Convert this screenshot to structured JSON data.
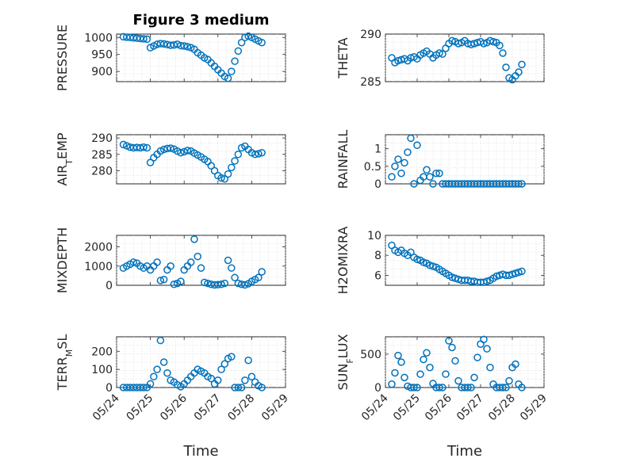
{
  "figure": {
    "title": "Figure 3 medium",
    "xlabel": "Time",
    "marker_color": "#0072BD",
    "x_ticks": [
      "05/24",
      "05/25",
      "05/26",
      "05/27",
      "05/28",
      "05/29"
    ]
  },
  "chart_data": [
    {
      "type": "scatter",
      "ylabel": "PRESSURE",
      "ylim": [
        870,
        1010
      ],
      "yticks": [
        900,
        950,
        1000
      ],
      "xlim": [
        24,
        29
      ],
      "grid": true,
      "series": [
        {
          "x": [
            24.2,
            24.3,
            24.4,
            24.5,
            24.6,
            24.7,
            24.8,
            24.9,
            25.0,
            25.1,
            25.2,
            25.3,
            25.4,
            25.5,
            25.6,
            25.7,
            25.8,
            25.9,
            26.0,
            26.1,
            26.2,
            26.3,
            26.4,
            26.5,
            26.6,
            26.7,
            26.8,
            26.9,
            27.0,
            27.1,
            27.2,
            27.3,
            27.4,
            27.5,
            27.6,
            27.7,
            27.8,
            27.9,
            28.0,
            28.1,
            28.2,
            28.3
          ],
          "y": [
            1002,
            1001,
            1000,
            999,
            998,
            997,
            996,
            995,
            970,
            975,
            980,
            982,
            981,
            979,
            977,
            978,
            980,
            976,
            975,
            973,
            970,
            965,
            955,
            948,
            940,
            935,
            925,
            915,
            905,
            895,
            885,
            880,
            900,
            930,
            960,
            985,
            1000,
            1004,
            1000,
            995,
            990,
            985
          ]
        }
      ]
    },
    {
      "type": "scatter",
      "ylabel": "THETA",
      "ylim": [
        285,
        290
      ],
      "yticks": [
        285,
        290
      ],
      "xlim": [
        24,
        29
      ],
      "grid": true,
      "series": [
        {
          "x": [
            24.2,
            24.3,
            24.4,
            24.5,
            24.6,
            24.7,
            24.8,
            24.9,
            25.0,
            25.1,
            25.2,
            25.3,
            25.4,
            25.5,
            25.6,
            25.7,
            25.8,
            25.9,
            26.0,
            26.1,
            26.2,
            26.3,
            26.4,
            26.5,
            26.6,
            26.7,
            26.8,
            26.9,
            27.0,
            27.1,
            27.2,
            27.3,
            27.4,
            27.5,
            27.6,
            27.7,
            27.8,
            27.9,
            28.0,
            28.1,
            28.2,
            28.3
          ],
          "y": [
            287.5,
            287.0,
            287.2,
            287.3,
            287.4,
            287.2,
            287.5,
            287.6,
            287.4,
            287.8,
            288.0,
            288.2,
            287.9,
            287.5,
            287.8,
            288.0,
            287.9,
            288.5,
            289.0,
            289.3,
            289.2,
            289.0,
            289.1,
            289.3,
            289.0,
            288.9,
            289.0,
            289.1,
            289.2,
            289.0,
            289.1,
            289.3,
            289.2,
            289.1,
            288.8,
            288.0,
            286.5,
            285.4,
            285.2,
            285.6,
            286.0,
            286.8
          ]
        }
      ]
    },
    {
      "type": "scatter",
      "ylabel": "AIR_TEMP",
      "ylim": [
        276,
        291
      ],
      "yticks": [
        280,
        285,
        290
      ],
      "xlim": [
        24,
        29
      ],
      "grid": true,
      "series": [
        {
          "x": [
            24.2,
            24.3,
            24.4,
            24.5,
            24.6,
            24.7,
            24.8,
            24.9,
            25.0,
            25.1,
            25.2,
            25.3,
            25.4,
            25.5,
            25.6,
            25.7,
            25.8,
            25.9,
            26.0,
            26.1,
            26.2,
            26.3,
            26.4,
            26.5,
            26.6,
            26.7,
            26.8,
            26.9,
            27.0,
            27.1,
            27.2,
            27.3,
            27.4,
            27.5,
            27.6,
            27.7,
            27.8,
            27.9,
            28.0,
            28.1,
            28.2,
            28.3
          ],
          "y": [
            288.0,
            287.6,
            287.2,
            287.0,
            287.1,
            287.0,
            287.2,
            287.0,
            282.5,
            284.0,
            285.0,
            286.0,
            286.5,
            286.8,
            286.9,
            286.6,
            286.0,
            285.5,
            285.8,
            286.2,
            286.0,
            285.4,
            284.8,
            284.2,
            283.5,
            282.8,
            281.5,
            280.0,
            278.5,
            277.8,
            277.5,
            279.0,
            281.0,
            283.0,
            285.0,
            287.0,
            287.5,
            286.5,
            285.5,
            285.0,
            285.2,
            285.5
          ]
        }
      ]
    },
    {
      "type": "scatter",
      "ylabel": "RAINFALL",
      "ylim": [
        0,
        1.4
      ],
      "yticks": [
        0,
        0.5,
        1
      ],
      "xlim": [
        24,
        29
      ],
      "grid": true,
      "series": [
        {
          "x": [
            24.2,
            24.3,
            24.4,
            24.5,
            24.6,
            24.7,
            24.8,
            24.9,
            25.0,
            25.1,
            25.2,
            25.3,
            25.4,
            25.5,
            25.6,
            25.7,
            25.8,
            25.9,
            26.0,
            26.1,
            26.2,
            26.3,
            26.4,
            26.5,
            26.6,
            26.7,
            26.8,
            26.9,
            27.0,
            27.1,
            27.2,
            27.3,
            27.4,
            27.5,
            27.6,
            27.7,
            27.8,
            27.9,
            28.0,
            28.1,
            28.2,
            28.3
          ],
          "y": [
            0.2,
            0.5,
            0.7,
            0.3,
            0.6,
            0.9,
            1.3,
            0.0,
            1.1,
            0.1,
            0.2,
            0.4,
            0.2,
            0.0,
            0.3,
            0.3,
            0.0,
            0.0,
            0.0,
            0.0,
            0.0,
            0.0,
            0.0,
            0.0,
            0.0,
            0.0,
            0.0,
            0.0,
            0.0,
            0.0,
            0.0,
            0.0,
            0.0,
            0.0,
            0.0,
            0.0,
            0.0,
            0.0,
            0.0,
            0.0,
            0.0,
            0.0
          ]
        }
      ]
    },
    {
      "type": "scatter",
      "ylabel": "MIXDEPTH",
      "ylim": [
        0,
        2600
      ],
      "yticks": [
        0,
        1000,
        2000
      ],
      "xlim": [
        24,
        29
      ],
      "grid": true,
      "series": [
        {
          "x": [
            24.2,
            24.3,
            24.4,
            24.5,
            24.6,
            24.7,
            24.8,
            24.9,
            25.0,
            25.1,
            25.2,
            25.3,
            25.4,
            25.5,
            25.6,
            25.7,
            25.8,
            25.9,
            26.0,
            26.1,
            26.2,
            26.3,
            26.4,
            26.5,
            26.6,
            26.7,
            26.8,
            26.9,
            27.0,
            27.1,
            27.2,
            27.3,
            27.4,
            27.5,
            27.6,
            27.7,
            27.8,
            27.9,
            28.0,
            28.1,
            28.2,
            28.3
          ],
          "y": [
            900,
            1000,
            1100,
            1200,
            1150,
            1000,
            900,
            1000,
            800,
            1000,
            1200,
            250,
            300,
            800,
            1000,
            50,
            100,
            200,
            800,
            1000,
            1200,
            2400,
            1500,
            900,
            150,
            100,
            50,
            20,
            30,
            50,
            100,
            1300,
            900,
            400,
            100,
            50,
            20,
            80,
            200,
            300,
            400,
            700
          ]
        }
      ]
    },
    {
      "type": "scatter",
      "ylabel": "H2OMIXRA",
      "ylim": [
        5,
        10
      ],
      "yticks": [
        6,
        8,
        10
      ],
      "xlim": [
        24,
        29
      ],
      "grid": true,
      "series": [
        {
          "x": [
            24.2,
            24.3,
            24.4,
            24.5,
            24.6,
            24.7,
            24.8,
            24.9,
            25.0,
            25.1,
            25.2,
            25.3,
            25.4,
            25.5,
            25.6,
            25.7,
            25.8,
            25.9,
            26.0,
            26.1,
            26.2,
            26.3,
            26.4,
            26.5,
            26.6,
            26.7,
            26.8,
            26.9,
            27.0,
            27.1,
            27.2,
            27.3,
            27.4,
            27.5,
            27.6,
            27.7,
            27.8,
            27.9,
            28.0,
            28.1,
            28.2,
            28.3
          ],
          "y": [
            9.0,
            8.5,
            8.3,
            8.5,
            8.2,
            8.0,
            8.3,
            7.8,
            7.6,
            7.5,
            7.3,
            7.2,
            7.0,
            6.9,
            6.8,
            6.6,
            6.4,
            6.2,
            6.0,
            5.8,
            5.7,
            5.6,
            5.5,
            5.5,
            5.5,
            5.4,
            5.4,
            5.3,
            5.3,
            5.3,
            5.4,
            5.5,
            5.7,
            5.9,
            6.0,
            6.1,
            6.0,
            6.0,
            6.1,
            6.2,
            6.3,
            6.4
          ]
        }
      ]
    },
    {
      "type": "scatter",
      "ylabel": "TERR_MSL",
      "ylim": [
        0,
        280
      ],
      "yticks": [
        0,
        100,
        200
      ],
      "xlim": [
        24,
        29
      ],
      "grid": true,
      "series": [
        {
          "x": [
            24.2,
            24.3,
            24.4,
            24.5,
            24.6,
            24.7,
            24.8,
            24.9,
            25.0,
            25.1,
            25.2,
            25.3,
            25.4,
            25.5,
            25.6,
            25.7,
            25.8,
            25.9,
            26.0,
            26.1,
            26.2,
            26.3,
            26.4,
            26.5,
            26.6,
            26.7,
            26.8,
            26.9,
            27.0,
            27.1,
            27.2,
            27.3,
            27.4,
            27.5,
            27.6,
            27.7,
            27.8,
            27.9,
            28.0,
            28.1,
            28.2,
            28.3
          ],
          "y": [
            0,
            0,
            0,
            0,
            0,
            0,
            0,
            0,
            20,
            60,
            100,
            260,
            140,
            80,
            40,
            30,
            15,
            5,
            20,
            40,
            60,
            80,
            100,
            90,
            80,
            60,
            50,
            20,
            40,
            100,
            130,
            160,
            170,
            0,
            0,
            0,
            40,
            150,
            60,
            30,
            10,
            0
          ]
        }
      ]
    },
    {
      "type": "scatter",
      "ylabel": "SUN_FLUX",
      "ylim": [
        0,
        760
      ],
      "yticks": [
        0,
        500
      ],
      "xlim": [
        24,
        29
      ],
      "grid": true,
      "series": [
        {
          "x": [
            24.2,
            24.3,
            24.4,
            24.5,
            24.6,
            24.7,
            24.8,
            24.9,
            25.0,
            25.1,
            25.2,
            25.3,
            25.4,
            25.5,
            25.6,
            25.7,
            25.8,
            25.9,
            26.0,
            26.1,
            26.2,
            26.3,
            26.4,
            26.5,
            26.6,
            26.7,
            26.8,
            26.9,
            27.0,
            27.1,
            27.2,
            27.3,
            27.4,
            27.5,
            27.6,
            27.7,
            27.8,
            27.9,
            28.0,
            28.1,
            28.2,
            28.3
          ],
          "y": [
            50,
            220,
            480,
            380,
            150,
            20,
            0,
            0,
            0,
            200,
            420,
            520,
            300,
            60,
            0,
            0,
            0,
            200,
            700,
            600,
            400,
            100,
            0,
            0,
            0,
            0,
            150,
            450,
            650,
            720,
            580,
            300,
            50,
            0,
            0,
            0,
            0,
            100,
            300,
            350,
            50,
            0
          ]
        }
      ]
    }
  ]
}
